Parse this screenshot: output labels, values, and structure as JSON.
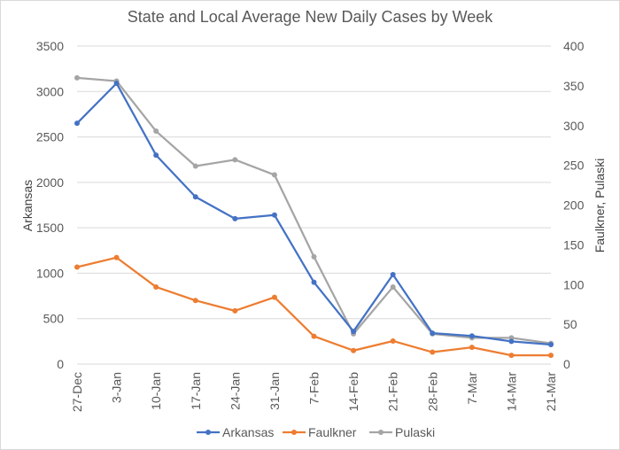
{
  "chart_data": {
    "type": "line",
    "title": "State and Local Average New Daily Cases by Week",
    "categories": [
      "27-Dec",
      "3-Jan",
      "10-Jan",
      "17-Jan",
      "24-Jan",
      "31-Jan",
      "7-Feb",
      "14-Feb",
      "21-Feb",
      "28-Feb",
      "7-Mar",
      "14-Mar",
      "21-Mar"
    ],
    "left_axis": {
      "label": "Arkansas",
      "range": [
        0,
        3500
      ],
      "ticks": [
        0,
        500,
        1000,
        1500,
        2000,
        2500,
        3000,
        3500
      ]
    },
    "right_axis": {
      "label": "Faulkner, Pulaski",
      "range": [
        0,
        400
      ],
      "ticks": [
        0,
        50,
        100,
        150,
        200,
        250,
        300,
        350,
        400
      ]
    },
    "grid": true,
    "legend_position": "bottom",
    "series": [
      {
        "name": "Arkansas",
        "axis": "left",
        "color": "#4472C4",
        "values": [
          2650,
          3090,
          2300,
          1840,
          1600,
          1640,
          900,
          360,
          985,
          340,
          310,
          250,
          215
        ]
      },
      {
        "name": "Faulkner",
        "axis": "right",
        "color": "#ED7D31",
        "values": [
          122,
          134,
          97,
          80,
          67,
          84,
          35,
          17,
          29,
          15,
          21,
          11,
          11
        ]
      },
      {
        "name": "Pulaski",
        "axis": "right",
        "color": "#A5A5A5",
        "values": [
          360,
          356,
          293,
          249,
          257,
          238,
          135,
          38,
          97,
          38,
          33,
          33,
          26
        ]
      }
    ]
  }
}
